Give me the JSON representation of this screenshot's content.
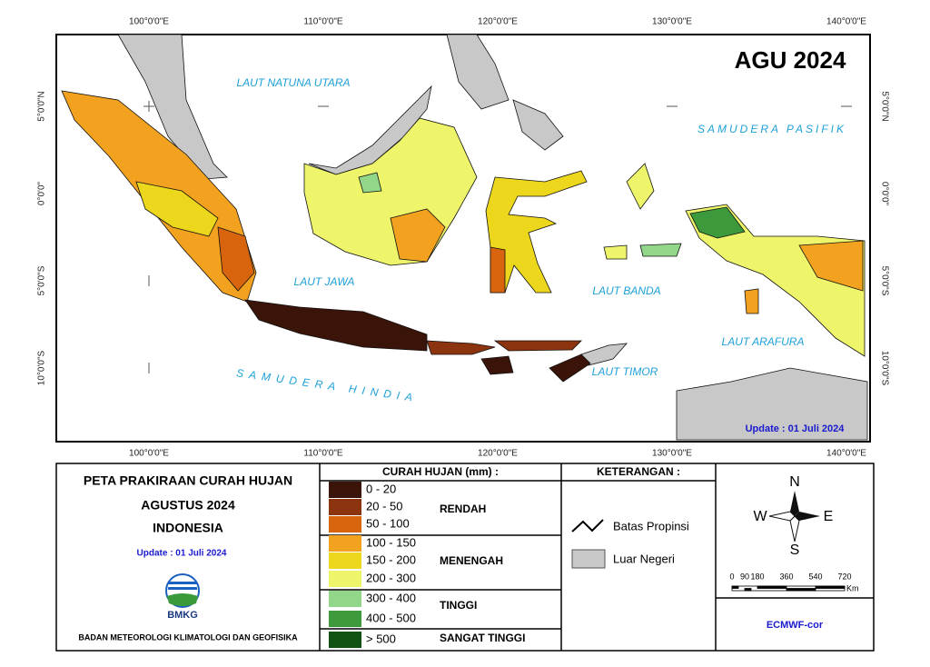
{
  "map": {
    "title": "AGU 2024",
    "update": "Update : 01 Juli  2024",
    "lon_labels": [
      "100°0'0\"E",
      "110°0'0\"E",
      "120°0'0\"E",
      "130°0'0\"E",
      "140°0'0\"E"
    ],
    "lat_labels": [
      "5°0'0\"N",
      "0°0'0\"",
      "5°0'0\"S",
      "10°0'0\"S"
    ],
    "seas": [
      "LAUT NATUNA UTARA",
      "SAMUDERA PASIFIK",
      "LAUT JAWA",
      "LAUT BANDA",
      "SAMUDERA HINDIA",
      "LAUT TIMOR",
      "LAUT ARAFURA"
    ]
  },
  "info": {
    "title": "PETA PRAKIRAAN CURAH HUJAN",
    "period": "AGUSTUS 2024",
    "region": "INDONESIA",
    "update": "Update : 01  Juli  2024",
    "logo": "BMKG",
    "agency": "BADAN METEOROLOGI KLIMATOLOGI DAN GEOFISIKA"
  },
  "legend": {
    "title": "CURAH HUJAN (mm) :",
    "classes": [
      {
        "range": "0 - 20",
        "color": "#3b1409"
      },
      {
        "range": "20 - 50",
        "color": "#8c3410"
      },
      {
        "range": "50 - 100",
        "color": "#d8650e"
      },
      {
        "range": "100 - 150",
        "color": "#f2a21e"
      },
      {
        "range": "150 - 200",
        "color": "#ecd71c"
      },
      {
        "range": "200 - 300",
        "color": "#eef56a"
      },
      {
        "range": "300 - 400",
        "color": "#92d68a"
      },
      {
        "range": "400 - 500",
        "color": "#3c9a3c"
      },
      {
        "range": "> 500",
        "color": "#0f5214"
      }
    ],
    "groups": [
      "RENDAH",
      "MENENGAH",
      "TINGGI",
      "SANGAT TINGGI"
    ]
  },
  "keterangan": {
    "title": "KETERANGAN :",
    "items": [
      "Batas Propinsi",
      "Luar Negeri"
    ]
  },
  "compass": {
    "n": "N",
    "s": "S",
    "w": "W",
    "e": "E"
  },
  "scale": {
    "ticks": [
      "0",
      "90",
      "180",
      "360",
      "540",
      "720"
    ],
    "unit": "Km"
  },
  "model": "ECMWF-cor"
}
